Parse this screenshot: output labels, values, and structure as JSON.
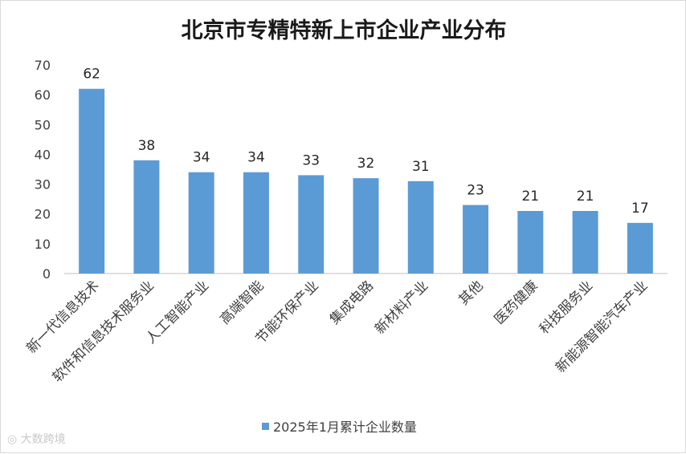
{
  "chart_data": {
    "type": "bar",
    "title": "北京市专精特新上市企业产业分布",
    "categories": [
      "新一代信息技术",
      "软件和信息技术服务业",
      "人工智能产业",
      "高端智能",
      "节能环保产业",
      "集成电路",
      "新材料产业",
      "其他",
      "医药健康",
      "科技服务业",
      "新能源智能汽车产业"
    ],
    "series": [
      {
        "name": "2025年1月累计企业数量",
        "values": [
          62,
          38,
          34,
          34,
          33,
          32,
          31,
          23,
          21,
          21,
          17
        ]
      }
    ],
    "ylim": [
      0,
      70
    ],
    "yticks": [
      0,
      10,
      20,
      30,
      40,
      50,
      60,
      70
    ],
    "grid": false,
    "legend_position": "bottom",
    "bar_color": "#5B9BD5"
  },
  "watermark": "大数跨境"
}
